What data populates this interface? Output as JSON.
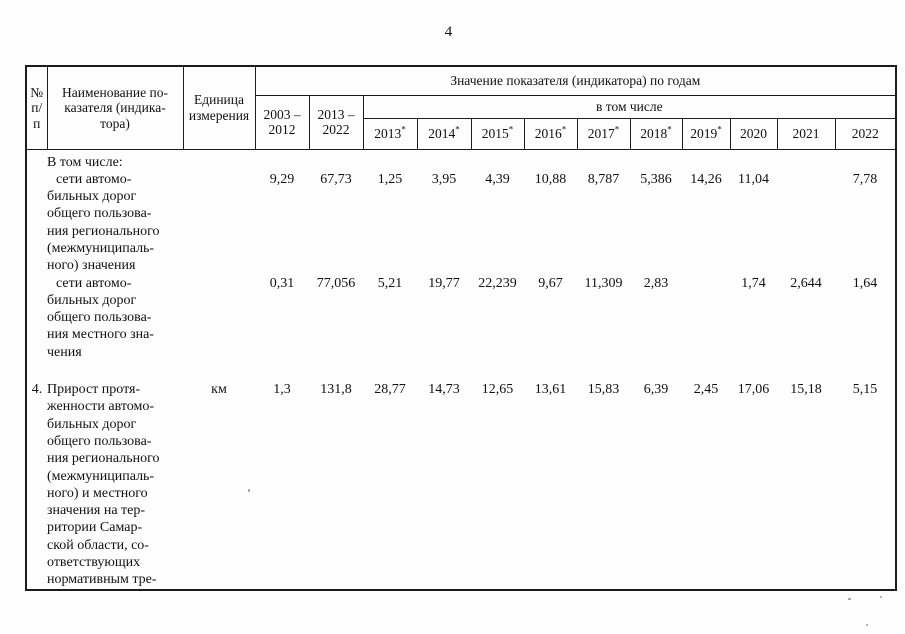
{
  "page": {
    "number": "4"
  },
  "table": {
    "header": {
      "num_lines": [
        "№",
        "п/п"
      ],
      "name_lines": [
        "Наименование по-",
        "казателя (индика-",
        "тора)"
      ],
      "unit_lines": [
        "Единица",
        "измерения"
      ],
      "values_by_years_label": "Значение показателя (индикатора) по годам",
      "including_label": "в том числе",
      "period1_lines": [
        "2003 –",
        "2012"
      ],
      "period2_lines": [
        "2013 –",
        "2022"
      ],
      "years": [
        {
          "label": "2013",
          "star": true
        },
        {
          "label": "2014",
          "star": true
        },
        {
          "label": "2015",
          "star": true
        },
        {
          "label": "2016",
          "star": true
        },
        {
          "label": "2017",
          "star": true
        },
        {
          "label": "2018",
          "star": true
        },
        {
          "label": "2019",
          "star": true
        },
        {
          "label": "2020",
          "star": false
        },
        {
          "label": "2021",
          "star": false
        },
        {
          "label": "2022",
          "star": false
        }
      ]
    },
    "rows": [
      {
        "num": "",
        "unit": "",
        "first_indent": false,
        "gap_before": false,
        "name_lines": [
          "В том числе:"
        ],
        "values": [
          "",
          "",
          "",
          "",
          "",
          "",
          "",
          "",
          "",
          "",
          "",
          ""
        ]
      },
      {
        "num": "",
        "unit": "",
        "first_indent": true,
        "gap_before": false,
        "name_lines": [
          "сети автомо-",
          "бильных дорог",
          "общего пользова-",
          "ния регионального",
          "(межмуниципаль-",
          "ного) значения"
        ],
        "values": [
          "9,29",
          "67,73",
          "1,25",
          "3,95",
          "4,39",
          "10,88",
          "8,787",
          "5,386",
          "14,26",
          "11,04",
          "",
          "7,78"
        ]
      },
      {
        "num": "",
        "unit": "",
        "first_indent": true,
        "gap_before": false,
        "name_lines": [
          "сети автомо-",
          "бильных дорог",
          "общего пользова-",
          "ния местного зна-",
          "чения"
        ],
        "values": [
          "0,31",
          "77,056",
          "5,21",
          "19,77",
          "22,239",
          "9,67",
          "11,309",
          "2,83",
          "",
          "1,74",
          "2,644",
          "1,64"
        ]
      },
      {
        "num": "4.",
        "unit": "км",
        "first_indent": false,
        "gap_before": true,
        "name_lines": [
          "Прирост протя-",
          "женности автомо-",
          "бильных дорог",
          "общего пользова-",
          "ния регионального",
          "(межмуниципаль-",
          "ного) и местного",
          "значения на тер-",
          "ритории Самар-",
          "ской области, со-",
          "ответствующих",
          "нормативным тре-"
        ],
        "values": [
          "1,3",
          "131,8",
          "28,77",
          "14,73",
          "12,65",
          "13,61",
          "15,83",
          "6,39",
          "2,45",
          "17,06",
          "15,18",
          "5,15"
        ]
      }
    ]
  }
}
